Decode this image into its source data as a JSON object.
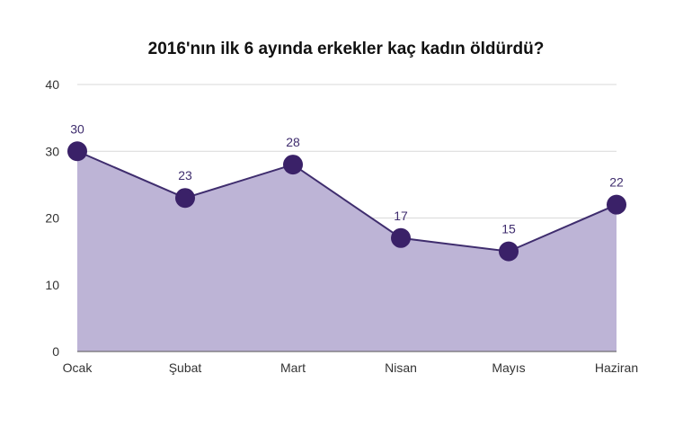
{
  "chart_data": {
    "type": "area",
    "title": "2016'nın ilk 6 ayında erkekler kaç kadın öldürdü?",
    "categories": [
      "Ocak",
      "Şubat",
      "Mart",
      "Nisan",
      "Mayıs",
      "Haziran"
    ],
    "series": [
      {
        "values": [
          30,
          23,
          28,
          17,
          15,
          22
        ]
      }
    ],
    "data_labels": [
      "30",
      "23",
      "28",
      "17",
      "15",
      "22"
    ],
    "y_ticks": [
      "0",
      "10",
      "20",
      "30",
      "40"
    ],
    "ylim": [
      0,
      40
    ],
    "grid": true,
    "legend": "none",
    "colors": {
      "line": "#3f2d6e",
      "fill": "#bdb4d6",
      "marker": "#3a2168",
      "grid": "#d9d9d9",
      "axis": "#555555"
    }
  }
}
